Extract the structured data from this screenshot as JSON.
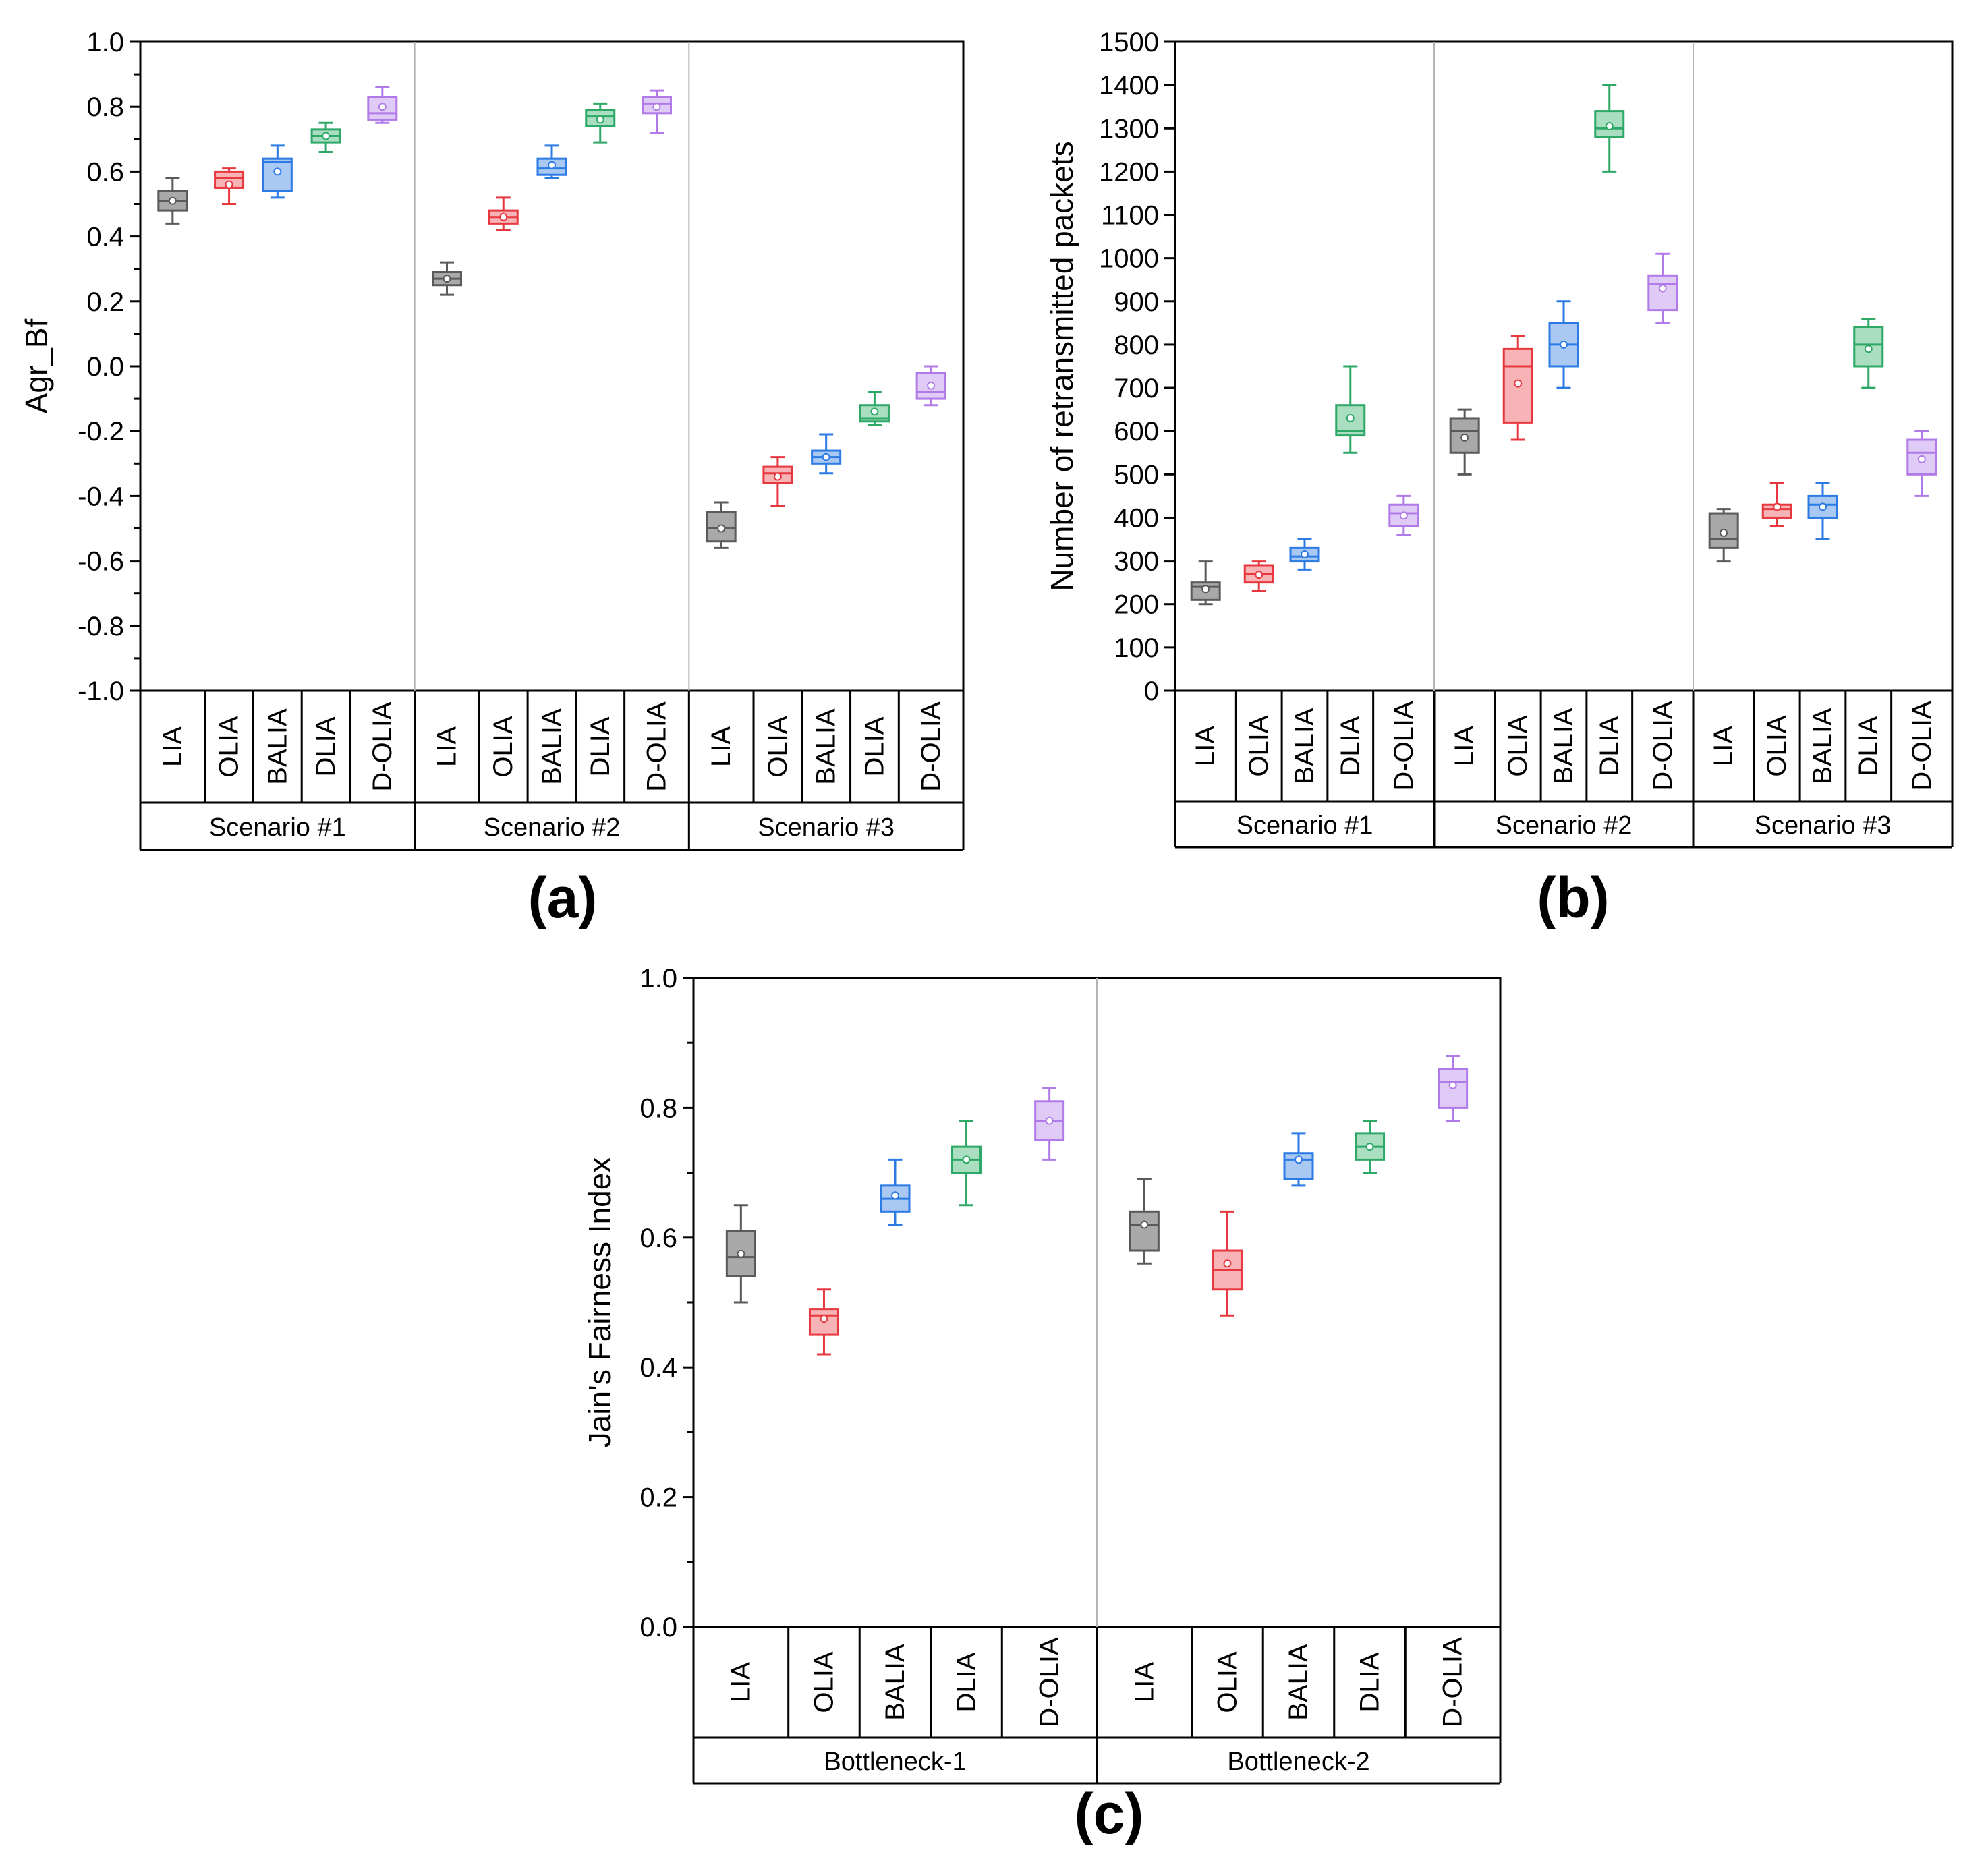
{
  "chart_data": [
    {
      "panel": "(a)",
      "type": "box",
      "ylabel": "Agr_Bf",
      "ylim": [
        -1.0,
        1.0
      ],
      "yticks": [
        "1.0",
        "0.8",
        "0.6",
        "0.4",
        "0.2",
        "0.0",
        "-0.2",
        "-0.4",
        "-0.6",
        "-0.8",
        "-1.0"
      ],
      "yticks_values": [
        1.0,
        0.8,
        0.6,
        0.4,
        0.2,
        0.0,
        -0.2,
        -0.4,
        -0.6,
        -0.8,
        -1.0
      ],
      "grid": false,
      "groups": [
        {
          "name": "Scenario #1",
          "boxes": [
            {
              "label": "LIA",
              "min": 0.44,
              "q1": 0.48,
              "median": 0.51,
              "q3": 0.54,
              "max": 0.58,
              "mean": 0.51
            },
            {
              "label": "OLIA",
              "min": 0.5,
              "q1": 0.55,
              "median": 0.58,
              "q3": 0.6,
              "max": 0.61,
              "mean": 0.56
            },
            {
              "label": "BALIA",
              "min": 0.52,
              "q1": 0.54,
              "median": 0.63,
              "q3": 0.64,
              "max": 0.68,
              "mean": 0.6
            },
            {
              "label": "DLIA",
              "min": 0.66,
              "q1": 0.69,
              "median": 0.71,
              "q3": 0.73,
              "max": 0.75,
              "mean": 0.71
            },
            {
              "label": "D-OLIA",
              "min": 0.75,
              "q1": 0.76,
              "median": 0.78,
              "q3": 0.83,
              "max": 0.86,
              "mean": 0.8
            }
          ]
        },
        {
          "name": "Scenario #2",
          "boxes": [
            {
              "label": "LIA",
              "min": 0.22,
              "q1": 0.25,
              "median": 0.27,
              "q3": 0.29,
              "max": 0.32,
              "mean": 0.27
            },
            {
              "label": "OLIA",
              "min": 0.42,
              "q1": 0.44,
              "median": 0.46,
              "q3": 0.48,
              "max": 0.52,
              "mean": 0.46
            },
            {
              "label": "BALIA",
              "min": 0.58,
              "q1": 0.59,
              "median": 0.61,
              "q3": 0.64,
              "max": 0.68,
              "mean": 0.62
            },
            {
              "label": "DLIA",
              "min": 0.69,
              "q1": 0.74,
              "median": 0.77,
              "q3": 0.79,
              "max": 0.81,
              "mean": 0.76
            },
            {
              "label": "D-OLIA",
              "min": 0.72,
              "q1": 0.78,
              "median": 0.81,
              "q3": 0.83,
              "max": 0.85,
              "mean": 0.8
            }
          ]
        },
        {
          "name": "Scenario #3",
          "boxes": [
            {
              "label": "LIA",
              "min": -0.56,
              "q1": -0.54,
              "median": -0.5,
              "q3": -0.45,
              "max": -0.42,
              "mean": -0.5
            },
            {
              "label": "OLIA",
              "min": -0.43,
              "q1": -0.36,
              "median": -0.33,
              "q3": -0.31,
              "max": -0.28,
              "mean": -0.34
            },
            {
              "label": "BALIA",
              "min": -0.33,
              "q1": -0.3,
              "median": -0.28,
              "q3": -0.26,
              "max": -0.21,
              "mean": -0.28
            },
            {
              "label": "DLIA",
              "min": -0.18,
              "q1": -0.17,
              "median": -0.16,
              "q3": -0.12,
              "max": -0.08,
              "mean": -0.14
            },
            {
              "label": "D-OLIA",
              "min": -0.12,
              "q1": -0.1,
              "median": -0.08,
              "q3": -0.02,
              "max": 0.0,
              "mean": -0.06
            }
          ]
        }
      ]
    },
    {
      "panel": "(b)",
      "type": "box",
      "ylabel": "Number of retransmitted packets",
      "ylim": [
        0,
        1500
      ],
      "yticks": [
        "1500",
        "1400",
        "1300",
        "1200",
        "1100",
        "1000",
        "900",
        "800",
        "700",
        "600",
        "500",
        "400",
        "300",
        "200",
        "100",
        "0"
      ],
      "yticks_values": [
        1500,
        1400,
        1300,
        1200,
        1100,
        1000,
        900,
        800,
        700,
        600,
        500,
        400,
        300,
        200,
        100,
        0
      ],
      "grid": false,
      "groups": [
        {
          "name": "Scenario #1",
          "boxes": [
            {
              "label": "LIA",
              "min": 200,
              "q1": 210,
              "median": 240,
              "q3": 250,
              "max": 300,
              "mean": 235
            },
            {
              "label": "OLIA",
              "min": 230,
              "q1": 250,
              "median": 270,
              "q3": 290,
              "max": 300,
              "mean": 268
            },
            {
              "label": "BALIA",
              "min": 280,
              "q1": 300,
              "median": 310,
              "q3": 330,
              "max": 350,
              "mean": 315
            },
            {
              "label": "DLIA",
              "min": 550,
              "q1": 590,
              "median": 600,
              "q3": 660,
              "max": 750,
              "mean": 630
            },
            {
              "label": "D-OLIA",
              "min": 360,
              "q1": 380,
              "median": 410,
              "q3": 430,
              "max": 450,
              "mean": 405
            }
          ]
        },
        {
          "name": "Scenario #2",
          "boxes": [
            {
              "label": "LIA",
              "min": 500,
              "q1": 550,
              "median": 600,
              "q3": 630,
              "max": 650,
              "mean": 585
            },
            {
              "label": "OLIA",
              "min": 580,
              "q1": 620,
              "median": 750,
              "q3": 790,
              "max": 820,
              "mean": 710
            },
            {
              "label": "BALIA",
              "min": 700,
              "q1": 750,
              "median": 800,
              "q3": 850,
              "max": 900,
              "mean": 800
            },
            {
              "label": "DLIA",
              "min": 1200,
              "q1": 1280,
              "median": 1300,
              "q3": 1340,
              "max": 1400,
              "mean": 1305
            },
            {
              "label": "D-OLIA",
              "min": 850,
              "q1": 880,
              "median": 940,
              "q3": 960,
              "max": 1010,
              "mean": 930
            }
          ]
        },
        {
          "name": "Scenario #3",
          "boxes": [
            {
              "label": "LIA",
              "min": 300,
              "q1": 330,
              "median": 350,
              "q3": 410,
              "max": 420,
              "mean": 365
            },
            {
              "label": "OLIA",
              "min": 380,
              "q1": 400,
              "median": 420,
              "q3": 430,
              "max": 480,
              "mean": 425
            },
            {
              "label": "BALIA",
              "min": 350,
              "q1": 400,
              "median": 430,
              "q3": 450,
              "max": 480,
              "mean": 425
            },
            {
              "label": "DLIA",
              "min": 700,
              "q1": 750,
              "median": 800,
              "q3": 840,
              "max": 860,
              "mean": 790
            },
            {
              "label": "D-OLIA",
              "min": 450,
              "q1": 500,
              "median": 550,
              "q3": 580,
              "max": 600,
              "mean": 535
            }
          ]
        }
      ]
    },
    {
      "panel": "(c)",
      "type": "box",
      "ylabel": "Jain's Fairness Index",
      "ylim": [
        0.0,
        1.0
      ],
      "yticks": [
        "1.0",
        "0.8",
        "0.6",
        "0.4",
        "0.2",
        "0.0"
      ],
      "yticks_values": [
        1.0,
        0.8,
        0.6,
        0.4,
        0.2,
        0.0
      ],
      "grid": false,
      "groups": [
        {
          "name": "Bottleneck-1",
          "boxes": [
            {
              "label": "LIA",
              "min": 0.5,
              "q1": 0.54,
              "median": 0.57,
              "q3": 0.61,
              "max": 0.65,
              "mean": 0.575
            },
            {
              "label": "OLIA",
              "min": 0.42,
              "q1": 0.45,
              "median": 0.48,
              "q3": 0.49,
              "max": 0.52,
              "mean": 0.475
            },
            {
              "label": "BALIA",
              "min": 0.62,
              "q1": 0.64,
              "median": 0.66,
              "q3": 0.68,
              "max": 0.72,
              "mean": 0.665
            },
            {
              "label": "DLIA",
              "min": 0.65,
              "q1": 0.7,
              "median": 0.72,
              "q3": 0.74,
              "max": 0.78,
              "mean": 0.72
            },
            {
              "label": "D-OLIA",
              "min": 0.72,
              "q1": 0.75,
              "median": 0.78,
              "q3": 0.81,
              "max": 0.83,
              "mean": 0.78
            }
          ]
        },
        {
          "name": "Bottleneck-2",
          "boxes": [
            {
              "label": "LIA",
              "min": 0.56,
              "q1": 0.58,
              "median": 0.62,
              "q3": 0.64,
              "max": 0.69,
              "mean": 0.62
            },
            {
              "label": "OLIA",
              "min": 0.48,
              "q1": 0.52,
              "median": 0.55,
              "q3": 0.58,
              "max": 0.64,
              "mean": 0.56
            },
            {
              "label": "BALIA",
              "min": 0.68,
              "q1": 0.69,
              "median": 0.72,
              "q3": 0.73,
              "max": 0.76,
              "mean": 0.72
            },
            {
              "label": "DLIA",
              "min": 0.7,
              "q1": 0.72,
              "median": 0.74,
              "q3": 0.76,
              "max": 0.78,
              "mean": 0.74
            },
            {
              "label": "D-OLIA",
              "min": 0.78,
              "q1": 0.8,
              "median": 0.84,
              "q3": 0.86,
              "max": 0.88,
              "mean": 0.835
            }
          ]
        }
      ]
    }
  ],
  "colors": {
    "LIA": {
      "stroke": "#5a5a5a",
      "fill": "#a9a9a9"
    },
    "OLIA": {
      "stroke": "#e8383f",
      "fill": "#f7b3b5"
    },
    "BALIA": {
      "stroke": "#2c7be5",
      "fill": "#a9c9f3"
    },
    "DLIA": {
      "stroke": "#2ea866",
      "fill": "#a9dfc0"
    },
    "D-OLIA": {
      "stroke": "#b07ae8",
      "fill": "#e0cbf7"
    }
  }
}
